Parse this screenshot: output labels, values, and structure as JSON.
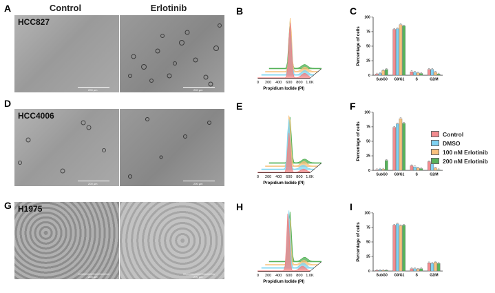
{
  "columns": {
    "control": "Control",
    "erlotinib": "Erlotinib"
  },
  "panel_letters": [
    "A",
    "B",
    "C",
    "D",
    "E",
    "F",
    "G",
    "H",
    "I"
  ],
  "cell_lines": [
    "HCC827",
    "HCC4006",
    "H1975"
  ],
  "scale_bar_label": "200 µm",
  "histogram": {
    "xlabel": "Propidium Iodide (PI)",
    "ticks": [
      "0",
      "200",
      "400",
      "600",
      "800",
      "1.0K"
    ],
    "colors": [
      "#f08080",
      "#7fd6f2",
      "#f8c07a",
      "#4caf50"
    ]
  },
  "legend": [
    "Control",
    "DMSO",
    "100 nM Erlotinib",
    "200 nM Erlotinib"
  ],
  "colors": {
    "control": "#f28b8f",
    "dmso": "#7fd2f2",
    "erl100": "#f9c27e",
    "erl200": "#57b35b"
  },
  "chart_data": [
    {
      "type": "bar",
      "panel": "C",
      "categories": [
        "SubG0",
        "G0/G1",
        "S",
        "G2/M"
      ],
      "ylabel": "Percentage of cells",
      "ylim": [
        0,
        100
      ],
      "yticks": [
        0,
        25,
        50,
        75,
        100
      ],
      "series": [
        {
          "name": "Control",
          "values": [
            2,
            79,
            6,
            10
          ]
        },
        {
          "name": "DMSO",
          "values": [
            3,
            80,
            5,
            10
          ]
        },
        {
          "name": "100 nM Erlotinib",
          "values": [
            8,
            87,
            4,
            5
          ]
        },
        {
          "name": "200 nM Erlotinib",
          "values": [
            10,
            85,
            3,
            2
          ]
        }
      ]
    },
    {
      "type": "bar",
      "panel": "F",
      "categories": [
        "SubG0",
        "G0/G1",
        "S",
        "G2/M"
      ],
      "ylabel": "Percentage of cells",
      "ylim": [
        0,
        100
      ],
      "yticks": [
        0,
        25,
        50,
        75,
        100
      ],
      "series": [
        {
          "name": "Control",
          "values": [
            1,
            74,
            8,
            15
          ]
        },
        {
          "name": "DMSO",
          "values": [
            2,
            80,
            6,
            11
          ]
        },
        {
          "name": "100 nM Erlotinib",
          "values": [
            2,
            89,
            4,
            4
          ]
        },
        {
          "name": "200 nM Erlotinib",
          "values": [
            17,
            81,
            3,
            1
          ]
        }
      ]
    },
    {
      "type": "bar",
      "panel": "I",
      "categories": [
        "SubG0",
        "G0/G1",
        "S",
        "G2/M"
      ],
      "ylabel": "Percentage of cells",
      "ylim": [
        0,
        100
      ],
      "yticks": [
        0,
        25,
        50,
        75,
        100
      ],
      "series": [
        {
          "name": "Control",
          "values": [
            1,
            79,
            4,
            14
          ]
        },
        {
          "name": "DMSO",
          "values": [
            1,
            81,
            4,
            13
          ]
        },
        {
          "name": "100 nM Erlotinib",
          "values": [
            1,
            78,
            3,
            15
          ]
        },
        {
          "name": "200 nM Erlotinib",
          "values": [
            1,
            79,
            4,
            13
          ]
        }
      ]
    }
  ]
}
